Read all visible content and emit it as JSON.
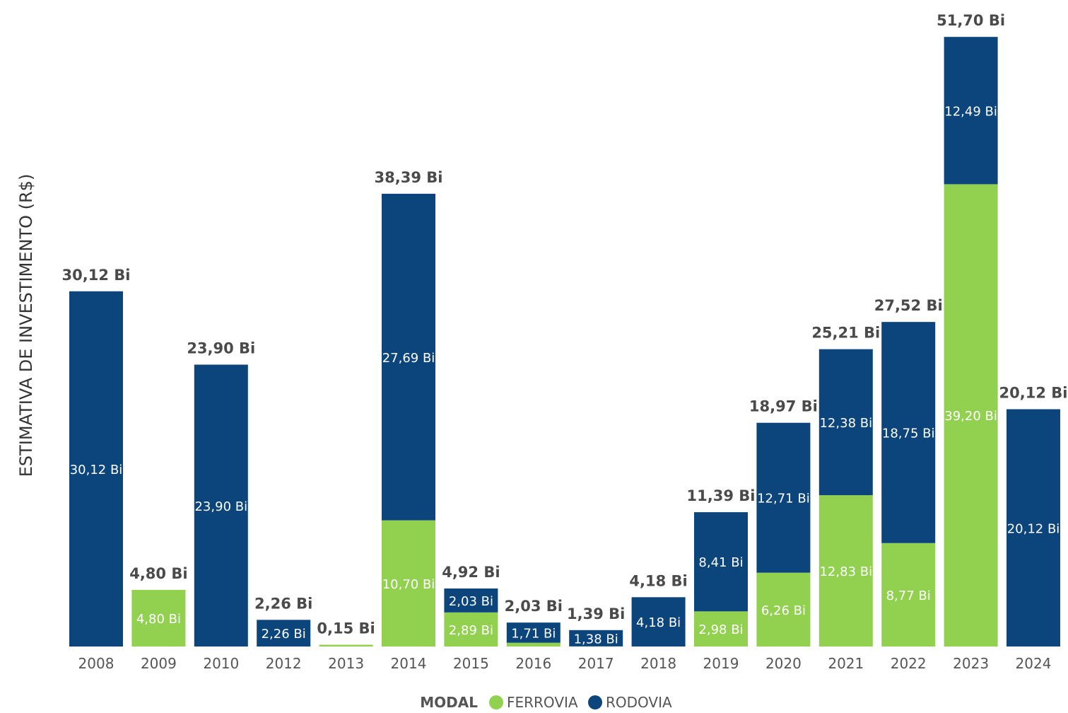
{
  "chart_data": {
    "type": "bar",
    "stacked": true,
    "ylabel": "ESTIMATIVA DE INVESTIMENTO (R$)",
    "categories": [
      "2008",
      "2009",
      "2010",
      "2012",
      "2013",
      "2014",
      "2015",
      "2016",
      "2017",
      "2018",
      "2019",
      "2020",
      "2021",
      "2022",
      "2023",
      "2024"
    ],
    "series": [
      {
        "name": "FERROVIA",
        "color": "#92d050",
        "values": [
          0,
          4.8,
          0,
          0,
          0.15,
          10.7,
          2.89,
          0.32,
          0.01,
          0,
          2.98,
          6.26,
          12.83,
          8.77,
          39.2,
          0
        ],
        "labels": [
          "",
          "4,80 Bi",
          "",
          "",
          "",
          "10,70 Bi",
          "2,89 Bi",
          "",
          "",
          "",
          "2,98 Bi",
          "6,26 Bi",
          "12,83 Bi",
          "8,77 Bi",
          "39,20 Bi",
          ""
        ]
      },
      {
        "name": "RODOVIA",
        "color": "#0b457c",
        "values": [
          30.12,
          0,
          23.9,
          2.26,
          0,
          27.69,
          2.03,
          1.71,
          1.38,
          4.18,
          8.41,
          12.71,
          12.38,
          18.75,
          12.49,
          20.12
        ],
        "labels": [
          "30,12 Bi",
          "",
          "23,90 Bi",
          "2,26 Bi",
          "",
          "27,69 Bi",
          "2,03 Bi",
          "1,71 Bi",
          "1,38 Bi",
          "4,18 Bi",
          "8,41 Bi",
          "12,71 Bi",
          "12,38 Bi",
          "18,75 Bi",
          "12,49 Bi",
          "20,12 Bi"
        ]
      }
    ],
    "totals": [
      30.12,
      4.8,
      23.9,
      2.26,
      0.15,
      38.39,
      4.92,
      2.03,
      1.39,
      4.18,
      11.39,
      18.97,
      25.21,
      27.52,
      51.7,
      20.12
    ],
    "total_labels": [
      "30,12 Bi",
      "4,80 Bi",
      "23,90 Bi",
      "2,26 Bi",
      "0,15 Bi",
      "38,39 Bi",
      "4,92 Bi",
      "2,03 Bi",
      "1,39 Bi",
      "4,18 Bi",
      "11,39 Bi",
      "18,97 Bi",
      "25,21 Bi",
      "27,52 Bi",
      "51,70 Bi",
      "20,12 Bi"
    ],
    "ylim": [
      0,
      51.7
    ],
    "grid": false,
    "legend": {
      "title": "MODAL",
      "position": "bottom-center"
    }
  }
}
